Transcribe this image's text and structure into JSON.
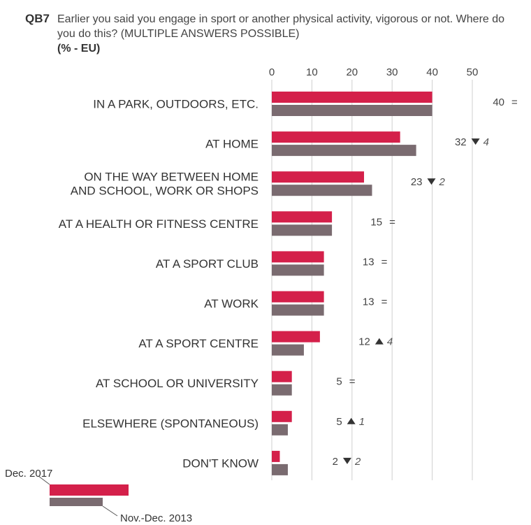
{
  "question": {
    "code": "QB7",
    "text": "Earlier you said you engage in sport or another physical activity, vigorous or not. Where do you do this? (MULTIPLE ANSWERS POSSIBLE)",
    "subtitle": "(% - EU)"
  },
  "chart_data": {
    "type": "bar",
    "orientation": "horizontal",
    "categories": [
      [
        "IN A PARK, OUTDOORS, ETC."
      ],
      [
        "AT HOME"
      ],
      [
        "ON THE WAY BETWEEN HOME",
        "AND SCHOOL, WORK OR SHOPS"
      ],
      [
        "AT A HEALTH OR FITNESS CENTRE"
      ],
      [
        "AT A SPORT CLUB"
      ],
      [
        "AT WORK"
      ],
      [
        "AT A SPORT CENTRE"
      ],
      [
        "AT SCHOOL OR UNIVERSITY"
      ],
      [
        "ELSEWHERE (SPONTANEOUS)"
      ],
      [
        "DON'T KNOW"
      ]
    ],
    "series": [
      {
        "name": "Dec. 2017",
        "color": "#d4204a",
        "values": [
          40,
          32,
          23,
          15,
          13,
          13,
          12,
          5,
          5,
          2
        ]
      },
      {
        "name": "Nov.-Dec. 2013",
        "color": "#7a6b70",
        "values": [
          40,
          36,
          25,
          15,
          13,
          13,
          8,
          5,
          4,
          4
        ]
      }
    ],
    "labels": [
      "40",
      "32",
      "23",
      "15",
      "13",
      "13",
      "12",
      "5",
      "5",
      "2"
    ],
    "changes": [
      {
        "dir": "=",
        "value": ""
      },
      {
        "dir": "down",
        "value": "4"
      },
      {
        "dir": "down",
        "value": "2"
      },
      {
        "dir": "=",
        "value": ""
      },
      {
        "dir": "=",
        "value": ""
      },
      {
        "dir": "=",
        "value": ""
      },
      {
        "dir": "up",
        "value": "4"
      },
      {
        "dir": "=",
        "value": ""
      },
      {
        "dir": "up",
        "value": "1"
      },
      {
        "dir": "down",
        "value": "2"
      }
    ],
    "xlim": [
      0,
      50
    ],
    "xticks": [
      0,
      10,
      20,
      30,
      40,
      50
    ],
    "grid": true,
    "legend_position": "bottom-left"
  }
}
